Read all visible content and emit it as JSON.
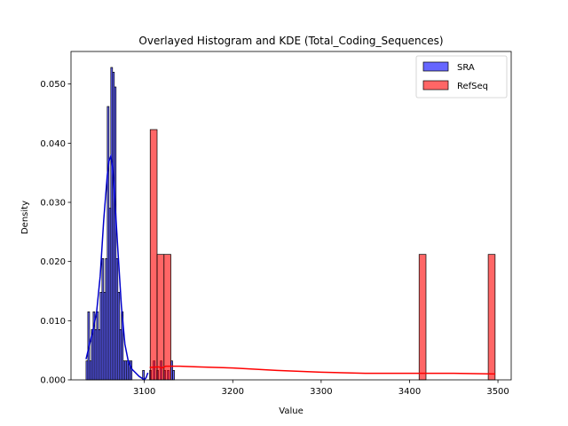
{
  "chart_data": {
    "type": "histogram",
    "title": "Overlayed Histogram and KDE (Total_Coding_Sequences)",
    "xlabel": "Value",
    "ylabel": "Density",
    "xlim": [
      3017,
      3515
    ],
    "ylim": [
      0,
      0.0555
    ],
    "xticks": [
      3100,
      3200,
      3300,
      3400,
      3500
    ],
    "yticks": [
      0.0,
      0.01,
      0.02,
      0.03,
      0.04,
      0.05
    ],
    "xtick_labels": [
      "3100",
      "3200",
      "3300",
      "3400",
      "3500"
    ],
    "ytick_labels": [
      "0.000",
      "0.010",
      "0.020",
      "0.030",
      "0.040",
      "0.050"
    ],
    "legend_position": "top-right",
    "grid": false,
    "series": [
      {
        "name": "SRA",
        "color": "#0000ff",
        "bar_alpha": 0.6,
        "kde_color": "#0000cc",
        "bins": [
          {
            "x0": 3034.0,
            "x1": 3036.0,
            "density": 0.0032
          },
          {
            "x0": 3036.0,
            "x1": 3038.0,
            "density": 0.0115
          },
          {
            "x0": 3038.0,
            "x1": 3040.0,
            "density": 0.0032
          },
          {
            "x0": 3040.0,
            "x1": 3042.0,
            "density": 0.0085
          },
          {
            "x0": 3042.0,
            "x1": 3044.0,
            "density": 0.0115
          },
          {
            "x0": 3044.0,
            "x1": 3046.0,
            "density": 0.0085
          },
          {
            "x0": 3046.0,
            "x1": 3048.0,
            "density": 0.0115
          },
          {
            "x0": 3048.0,
            "x1": 3050.0,
            "density": 0.0085
          },
          {
            "x0": 3050.0,
            "x1": 3052.0,
            "density": 0.0148
          },
          {
            "x0": 3052.0,
            "x1": 3054.0,
            "density": 0.0205
          },
          {
            "x0": 3054.0,
            "x1": 3056.0,
            "density": 0.0148
          },
          {
            "x0": 3056.0,
            "x1": 3058.0,
            "density": 0.0205
          },
          {
            "x0": 3058.0,
            "x1": 3060.0,
            "density": 0.0462
          },
          {
            "x0": 3060.0,
            "x1": 3062.0,
            "density": 0.029
          },
          {
            "x0": 3062.0,
            "x1": 3064.0,
            "density": 0.0528
          },
          {
            "x0": 3064.0,
            "x1": 3066.0,
            "density": 0.052
          },
          {
            "x0": 3066.0,
            "x1": 3068.0,
            "density": 0.0495
          },
          {
            "x0": 3068.0,
            "x1": 3070.0,
            "density": 0.0205
          },
          {
            "x0": 3070.0,
            "x1": 3072.0,
            "density": 0.0148
          },
          {
            "x0": 3072.0,
            "x1": 3074.0,
            "density": 0.0085
          },
          {
            "x0": 3074.0,
            "x1": 3076.0,
            "density": 0.0115
          },
          {
            "x0": 3076.0,
            "x1": 3078.0,
            "density": 0.0032
          },
          {
            "x0": 3078.0,
            "x1": 3080.0,
            "density": 0.0032
          },
          {
            "x0": 3080.0,
            "x1": 3082.0,
            "density": 0.0032
          },
          {
            "x0": 3082.0,
            "x1": 3084.0,
            "density": 0.0032
          },
          {
            "x0": 3084.0,
            "x1": 3086.0,
            "density": 0.0032
          },
          {
            "x0": 3098.0,
            "x1": 3100.0,
            "density": 0.0016
          },
          {
            "x0": 3106.0,
            "x1": 3108.0,
            "density": 0.0016
          },
          {
            "x0": 3110.0,
            "x1": 3112.0,
            "density": 0.0032
          },
          {
            "x0": 3114.0,
            "x1": 3116.0,
            "density": 0.0016
          },
          {
            "x0": 3118.0,
            "x1": 3120.0,
            "density": 0.0032
          },
          {
            "x0": 3122.0,
            "x1": 3124.0,
            "density": 0.0016
          },
          {
            "x0": 3126.0,
            "x1": 3128.0,
            "density": 0.0016
          },
          {
            "x0": 3130.0,
            "x1": 3132.0,
            "density": 0.0032
          },
          {
            "x0": 3132.0,
            "x1": 3134.0,
            "density": 0.0016
          }
        ],
        "kde": {
          "x": [
            3034,
            3038,
            3042,
            3046,
            3050,
            3054,
            3058,
            3060,
            3062,
            3064,
            3066,
            3070,
            3074,
            3078,
            3082,
            3086,
            3090,
            3094,
            3098,
            3100,
            3102,
            3104
          ],
          "y": [
            0.0035,
            0.006,
            0.0085,
            0.0115,
            0.0175,
            0.027,
            0.0345,
            0.037,
            0.0378,
            0.036,
            0.032,
            0.022,
            0.0125,
            0.006,
            0.003,
            0.0018,
            0.0012,
            0.0006,
            0.0002,
            0.0,
            0.0004,
            0.0012
          ]
        }
      },
      {
        "name": "RefSeq",
        "color": "#ff0000",
        "bar_alpha": 0.6,
        "kde_color": "#ff0000",
        "bins": [
          {
            "x0": 3106.6,
            "x1": 3114.4,
            "density": 0.0423
          },
          {
            "x0": 3114.4,
            "x1": 3122.2,
            "density": 0.0212
          },
          {
            "x0": 3122.2,
            "x1": 3130.0,
            "density": 0.0212
          },
          {
            "x0": 3403.0,
            "x1": 3410.8,
            "density": 0.0
          },
          {
            "x0": 3410.8,
            "x1": 3418.6,
            "density": 0.0212
          },
          {
            "x0": 3489.0,
            "x1": 3496.8,
            "density": 0.0212
          }
        ],
        "kde": {
          "x": [
            3106,
            3116,
            3120,
            3124,
            3140,
            3160,
            3200,
            3250,
            3300,
            3350,
            3400,
            3450,
            3497
          ],
          "y": [
            0.0021,
            0.0022,
            0.002,
            0.0023,
            0.0023,
            0.0022,
            0.002,
            0.0016,
            0.0013,
            0.0011,
            0.0011,
            0.0011,
            0.001
          ]
        }
      }
    ]
  }
}
